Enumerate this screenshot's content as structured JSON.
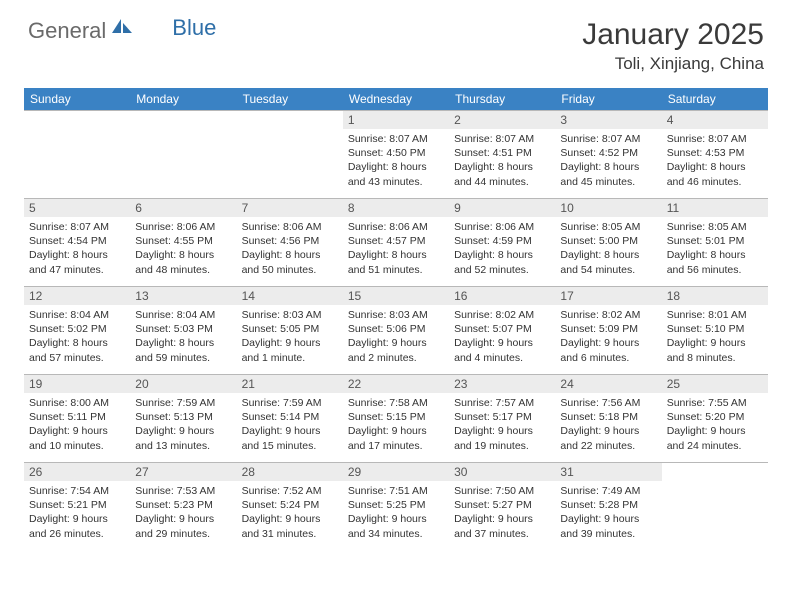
{
  "logo": {
    "general": "General",
    "blue": "Blue"
  },
  "title": "January 2025",
  "subtitle": "Toli, Xinjiang, China",
  "weekdays": [
    "Sunday",
    "Monday",
    "Tuesday",
    "Wednesday",
    "Thursday",
    "Friday",
    "Saturday"
  ],
  "colors": {
    "header_bg": "#3a82c4",
    "header_fg": "#ffffff",
    "daynum_bg": "#ececec",
    "row_border": "#b8b8b8",
    "logo_blue": "#2f6fa8",
    "logo_gray": "#6a6a6a"
  },
  "weeks": [
    [
      {
        "n": "",
        "sr": "",
        "ss": "",
        "dl": ""
      },
      {
        "n": "",
        "sr": "",
        "ss": "",
        "dl": ""
      },
      {
        "n": "",
        "sr": "",
        "ss": "",
        "dl": ""
      },
      {
        "n": "1",
        "sr": "Sunrise: 8:07 AM",
        "ss": "Sunset: 4:50 PM",
        "dl": "Daylight: 8 hours and 43 minutes."
      },
      {
        "n": "2",
        "sr": "Sunrise: 8:07 AM",
        "ss": "Sunset: 4:51 PM",
        "dl": "Daylight: 8 hours and 44 minutes."
      },
      {
        "n": "3",
        "sr": "Sunrise: 8:07 AM",
        "ss": "Sunset: 4:52 PM",
        "dl": "Daylight: 8 hours and 45 minutes."
      },
      {
        "n": "4",
        "sr": "Sunrise: 8:07 AM",
        "ss": "Sunset: 4:53 PM",
        "dl": "Daylight: 8 hours and 46 minutes."
      }
    ],
    [
      {
        "n": "5",
        "sr": "Sunrise: 8:07 AM",
        "ss": "Sunset: 4:54 PM",
        "dl": "Daylight: 8 hours and 47 minutes."
      },
      {
        "n": "6",
        "sr": "Sunrise: 8:06 AM",
        "ss": "Sunset: 4:55 PM",
        "dl": "Daylight: 8 hours and 48 minutes."
      },
      {
        "n": "7",
        "sr": "Sunrise: 8:06 AM",
        "ss": "Sunset: 4:56 PM",
        "dl": "Daylight: 8 hours and 50 minutes."
      },
      {
        "n": "8",
        "sr": "Sunrise: 8:06 AM",
        "ss": "Sunset: 4:57 PM",
        "dl": "Daylight: 8 hours and 51 minutes."
      },
      {
        "n": "9",
        "sr": "Sunrise: 8:06 AM",
        "ss": "Sunset: 4:59 PM",
        "dl": "Daylight: 8 hours and 52 minutes."
      },
      {
        "n": "10",
        "sr": "Sunrise: 8:05 AM",
        "ss": "Sunset: 5:00 PM",
        "dl": "Daylight: 8 hours and 54 minutes."
      },
      {
        "n": "11",
        "sr": "Sunrise: 8:05 AM",
        "ss": "Sunset: 5:01 PM",
        "dl": "Daylight: 8 hours and 56 minutes."
      }
    ],
    [
      {
        "n": "12",
        "sr": "Sunrise: 8:04 AM",
        "ss": "Sunset: 5:02 PM",
        "dl": "Daylight: 8 hours and 57 minutes."
      },
      {
        "n": "13",
        "sr": "Sunrise: 8:04 AM",
        "ss": "Sunset: 5:03 PM",
        "dl": "Daylight: 8 hours and 59 minutes."
      },
      {
        "n": "14",
        "sr": "Sunrise: 8:03 AM",
        "ss": "Sunset: 5:05 PM",
        "dl": "Daylight: 9 hours and 1 minute."
      },
      {
        "n": "15",
        "sr": "Sunrise: 8:03 AM",
        "ss": "Sunset: 5:06 PM",
        "dl": "Daylight: 9 hours and 2 minutes."
      },
      {
        "n": "16",
        "sr": "Sunrise: 8:02 AM",
        "ss": "Sunset: 5:07 PM",
        "dl": "Daylight: 9 hours and 4 minutes."
      },
      {
        "n": "17",
        "sr": "Sunrise: 8:02 AM",
        "ss": "Sunset: 5:09 PM",
        "dl": "Daylight: 9 hours and 6 minutes."
      },
      {
        "n": "18",
        "sr": "Sunrise: 8:01 AM",
        "ss": "Sunset: 5:10 PM",
        "dl": "Daylight: 9 hours and 8 minutes."
      }
    ],
    [
      {
        "n": "19",
        "sr": "Sunrise: 8:00 AM",
        "ss": "Sunset: 5:11 PM",
        "dl": "Daylight: 9 hours and 10 minutes."
      },
      {
        "n": "20",
        "sr": "Sunrise: 7:59 AM",
        "ss": "Sunset: 5:13 PM",
        "dl": "Daylight: 9 hours and 13 minutes."
      },
      {
        "n": "21",
        "sr": "Sunrise: 7:59 AM",
        "ss": "Sunset: 5:14 PM",
        "dl": "Daylight: 9 hours and 15 minutes."
      },
      {
        "n": "22",
        "sr": "Sunrise: 7:58 AM",
        "ss": "Sunset: 5:15 PM",
        "dl": "Daylight: 9 hours and 17 minutes."
      },
      {
        "n": "23",
        "sr": "Sunrise: 7:57 AM",
        "ss": "Sunset: 5:17 PM",
        "dl": "Daylight: 9 hours and 19 minutes."
      },
      {
        "n": "24",
        "sr": "Sunrise: 7:56 AM",
        "ss": "Sunset: 5:18 PM",
        "dl": "Daylight: 9 hours and 22 minutes."
      },
      {
        "n": "25",
        "sr": "Sunrise: 7:55 AM",
        "ss": "Sunset: 5:20 PM",
        "dl": "Daylight: 9 hours and 24 minutes."
      }
    ],
    [
      {
        "n": "26",
        "sr": "Sunrise: 7:54 AM",
        "ss": "Sunset: 5:21 PM",
        "dl": "Daylight: 9 hours and 26 minutes."
      },
      {
        "n": "27",
        "sr": "Sunrise: 7:53 AM",
        "ss": "Sunset: 5:23 PM",
        "dl": "Daylight: 9 hours and 29 minutes."
      },
      {
        "n": "28",
        "sr": "Sunrise: 7:52 AM",
        "ss": "Sunset: 5:24 PM",
        "dl": "Daylight: 9 hours and 31 minutes."
      },
      {
        "n": "29",
        "sr": "Sunrise: 7:51 AM",
        "ss": "Sunset: 5:25 PM",
        "dl": "Daylight: 9 hours and 34 minutes."
      },
      {
        "n": "30",
        "sr": "Sunrise: 7:50 AM",
        "ss": "Sunset: 5:27 PM",
        "dl": "Daylight: 9 hours and 37 minutes."
      },
      {
        "n": "31",
        "sr": "Sunrise: 7:49 AM",
        "ss": "Sunset: 5:28 PM",
        "dl": "Daylight: 9 hours and 39 minutes."
      },
      {
        "n": "",
        "sr": "",
        "ss": "",
        "dl": ""
      }
    ]
  ]
}
